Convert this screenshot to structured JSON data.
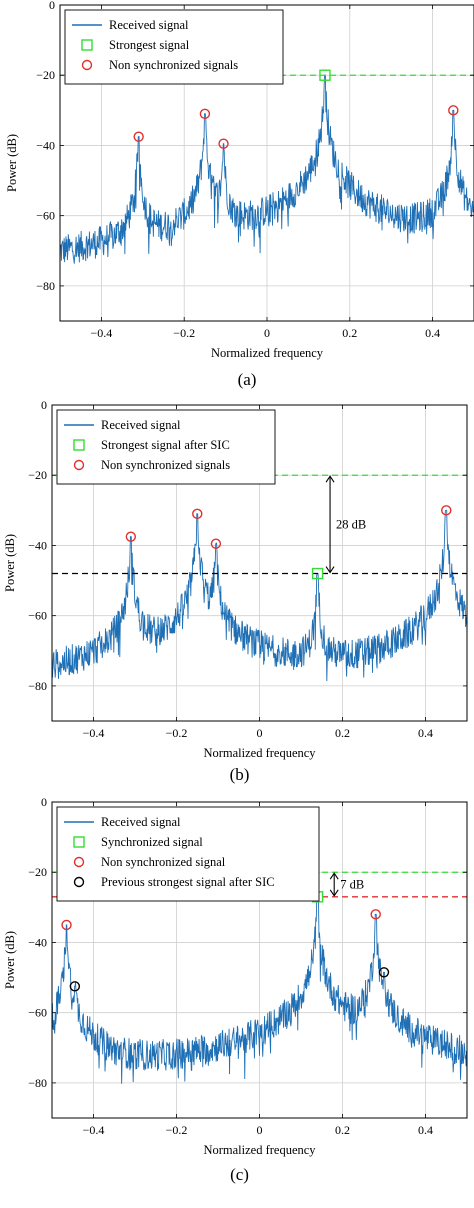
{
  "colors": {
    "signal": "#1f6fb5",
    "green": "#33dd33",
    "red": "#e03030",
    "black": "#000000",
    "grid": "#cfcfcf"
  },
  "chart_data": [
    {
      "type": "line",
      "caption": "(a)",
      "xlabel": "Normalized frequency",
      "ylabel": "Power (dB)",
      "xlim": [
        -0.5,
        0.5
      ],
      "ylim": [
        -90,
        0
      ],
      "xticks": [
        -0.4,
        -0.2,
        0,
        0.2,
        0.4
      ],
      "xtick_labels": [
        "−0.4",
        "−0.2",
        "0",
        "0.2",
        "0.4"
      ],
      "yticks": [
        0,
        -20,
        -40,
        -60,
        -80
      ],
      "ytick_labels": [
        "0",
        "−20",
        "−40",
        "−60",
        "−80"
      ],
      "grid": true,
      "legend_position": "top-left",
      "legend": [
        {
          "marker": "line",
          "color": "#1f6fb5",
          "label": "Received signal"
        },
        {
          "marker": "square",
          "color": "#33dd33",
          "label": "Strongest signal"
        },
        {
          "marker": "circle",
          "color": "#e03030",
          "label": "Non synchronized signals"
        }
      ],
      "peaks": [
        {
          "x": -0.31,
          "y": -37.5
        },
        {
          "x": -0.15,
          "y": -31
        },
        {
          "x": -0.105,
          "y": -39.5
        },
        {
          "x": 0.14,
          "y": -20
        },
        {
          "x": 0.45,
          "y": -30
        }
      ],
      "noise_floor": -83,
      "markers": [
        {
          "type": "square",
          "color": "#33dd33",
          "x": 0.14,
          "y": -20
        },
        {
          "type": "circle",
          "color": "#e03030",
          "x": -0.31,
          "y": -37.5
        },
        {
          "type": "circle",
          "color": "#e03030",
          "x": -0.15,
          "y": -31
        },
        {
          "type": "circle",
          "color": "#e03030",
          "x": -0.105,
          "y": -39.5
        },
        {
          "type": "circle",
          "color": "#e03030",
          "x": 0.45,
          "y": -30
        }
      ],
      "hlines": [
        {
          "y": -20,
          "color": "#33dd33"
        }
      ],
      "annotations": []
    },
    {
      "type": "line",
      "caption": "(b)",
      "xlabel": "Normalized frequency",
      "ylabel": "Power (dB)",
      "xlim": [
        -0.5,
        0.5
      ],
      "ylim": [
        -90,
        0
      ],
      "xticks": [
        -0.4,
        -0.2,
        0,
        0.2,
        0.4
      ],
      "xtick_labels": [
        "−0.4",
        "−0.2",
        "0",
        "0.2",
        "0.4"
      ],
      "yticks": [
        0,
        -20,
        -40,
        -60,
        -80
      ],
      "ytick_labels": [
        "0",
        "−20",
        "−40",
        "−60",
        "−80"
      ],
      "grid": true,
      "legend_position": "top-left",
      "legend": [
        {
          "marker": "line",
          "color": "#1f6fb5",
          "label": "Received signal"
        },
        {
          "marker": "square",
          "color": "#33dd33",
          "label": "Strongest signal after SIC"
        },
        {
          "marker": "circle",
          "color": "#e03030",
          "label": "Non synchronized signals"
        }
      ],
      "peaks": [
        {
          "x": -0.31,
          "y": -37.5
        },
        {
          "x": -0.15,
          "y": -31
        },
        {
          "x": -0.105,
          "y": -39.5
        },
        {
          "x": 0.14,
          "y": -48
        },
        {
          "x": 0.45,
          "y": -30
        }
      ],
      "noise_floor": -83,
      "markers": [
        {
          "type": "square",
          "color": "#33dd33",
          "x": 0.14,
          "y": -48
        },
        {
          "type": "circle",
          "color": "#e03030",
          "x": -0.31,
          "y": -37.5
        },
        {
          "type": "circle",
          "color": "#e03030",
          "x": -0.15,
          "y": -31
        },
        {
          "type": "circle",
          "color": "#e03030",
          "x": -0.105,
          "y": -39.5
        },
        {
          "type": "circle",
          "color": "#e03030",
          "x": 0.45,
          "y": -30
        }
      ],
      "hlines": [
        {
          "y": -20,
          "color": "#33dd33"
        },
        {
          "y": -48,
          "color": "#000000"
        }
      ],
      "annotations": [
        {
          "type": "arrow",
          "x": 0.17,
          "y1": -20,
          "y2": -48,
          "label": "28 dB"
        }
      ]
    },
    {
      "type": "line",
      "caption": "(c)",
      "xlabel": "Normalized frequency",
      "ylabel": "Power (dB)",
      "xlim": [
        -0.5,
        0.5
      ],
      "ylim": [
        -90,
        0
      ],
      "xticks": [
        -0.4,
        -0.2,
        0,
        0.2,
        0.4
      ],
      "xtick_labels": [
        "−0.4",
        "−0.2",
        "0",
        "0.2",
        "0.4"
      ],
      "yticks": [
        0,
        -20,
        -40,
        -60,
        -80
      ],
      "ytick_labels": [
        "0",
        "−20",
        "−40",
        "−60",
        "−80"
      ],
      "grid": true,
      "legend_position": "top-left",
      "legend": [
        {
          "marker": "line",
          "color": "#1f6fb5",
          "label": "Received signal"
        },
        {
          "marker": "square",
          "color": "#33dd33",
          "label": "Synchronized signal"
        },
        {
          "marker": "circle",
          "color": "#e03030",
          "label": "Non synchronized signal"
        },
        {
          "marker": "circle",
          "color": "#000000",
          "label": "Previous strongest signal after SIC"
        }
      ],
      "peaks": [
        {
          "x": -0.465,
          "y": -35
        },
        {
          "x": -0.445,
          "y": -52.5
        },
        {
          "x": 0.14,
          "y": -27
        },
        {
          "x": 0.28,
          "y": -32
        },
        {
          "x": 0.3,
          "y": -48.5
        }
      ],
      "noise_floor": -84,
      "markers": [
        {
          "type": "square",
          "color": "#33dd33",
          "x": 0.14,
          "y": -27
        },
        {
          "type": "circle",
          "color": "#e03030",
          "x": -0.465,
          "y": -35
        },
        {
          "type": "circle",
          "color": "#000000",
          "x": -0.445,
          "y": -52.5
        },
        {
          "type": "circle",
          "color": "#e03030",
          "x": 0.28,
          "y": -32
        },
        {
          "type": "circle",
          "color": "#000000",
          "x": 0.3,
          "y": -48.5
        }
      ],
      "hlines": [
        {
          "y": -20,
          "color": "#33dd33"
        },
        {
          "y": -27,
          "color": "#e03030"
        }
      ],
      "annotations": [
        {
          "type": "arrow",
          "x": 0.18,
          "y1": -20,
          "y2": -27,
          "label": "7 dB"
        }
      ]
    }
  ]
}
